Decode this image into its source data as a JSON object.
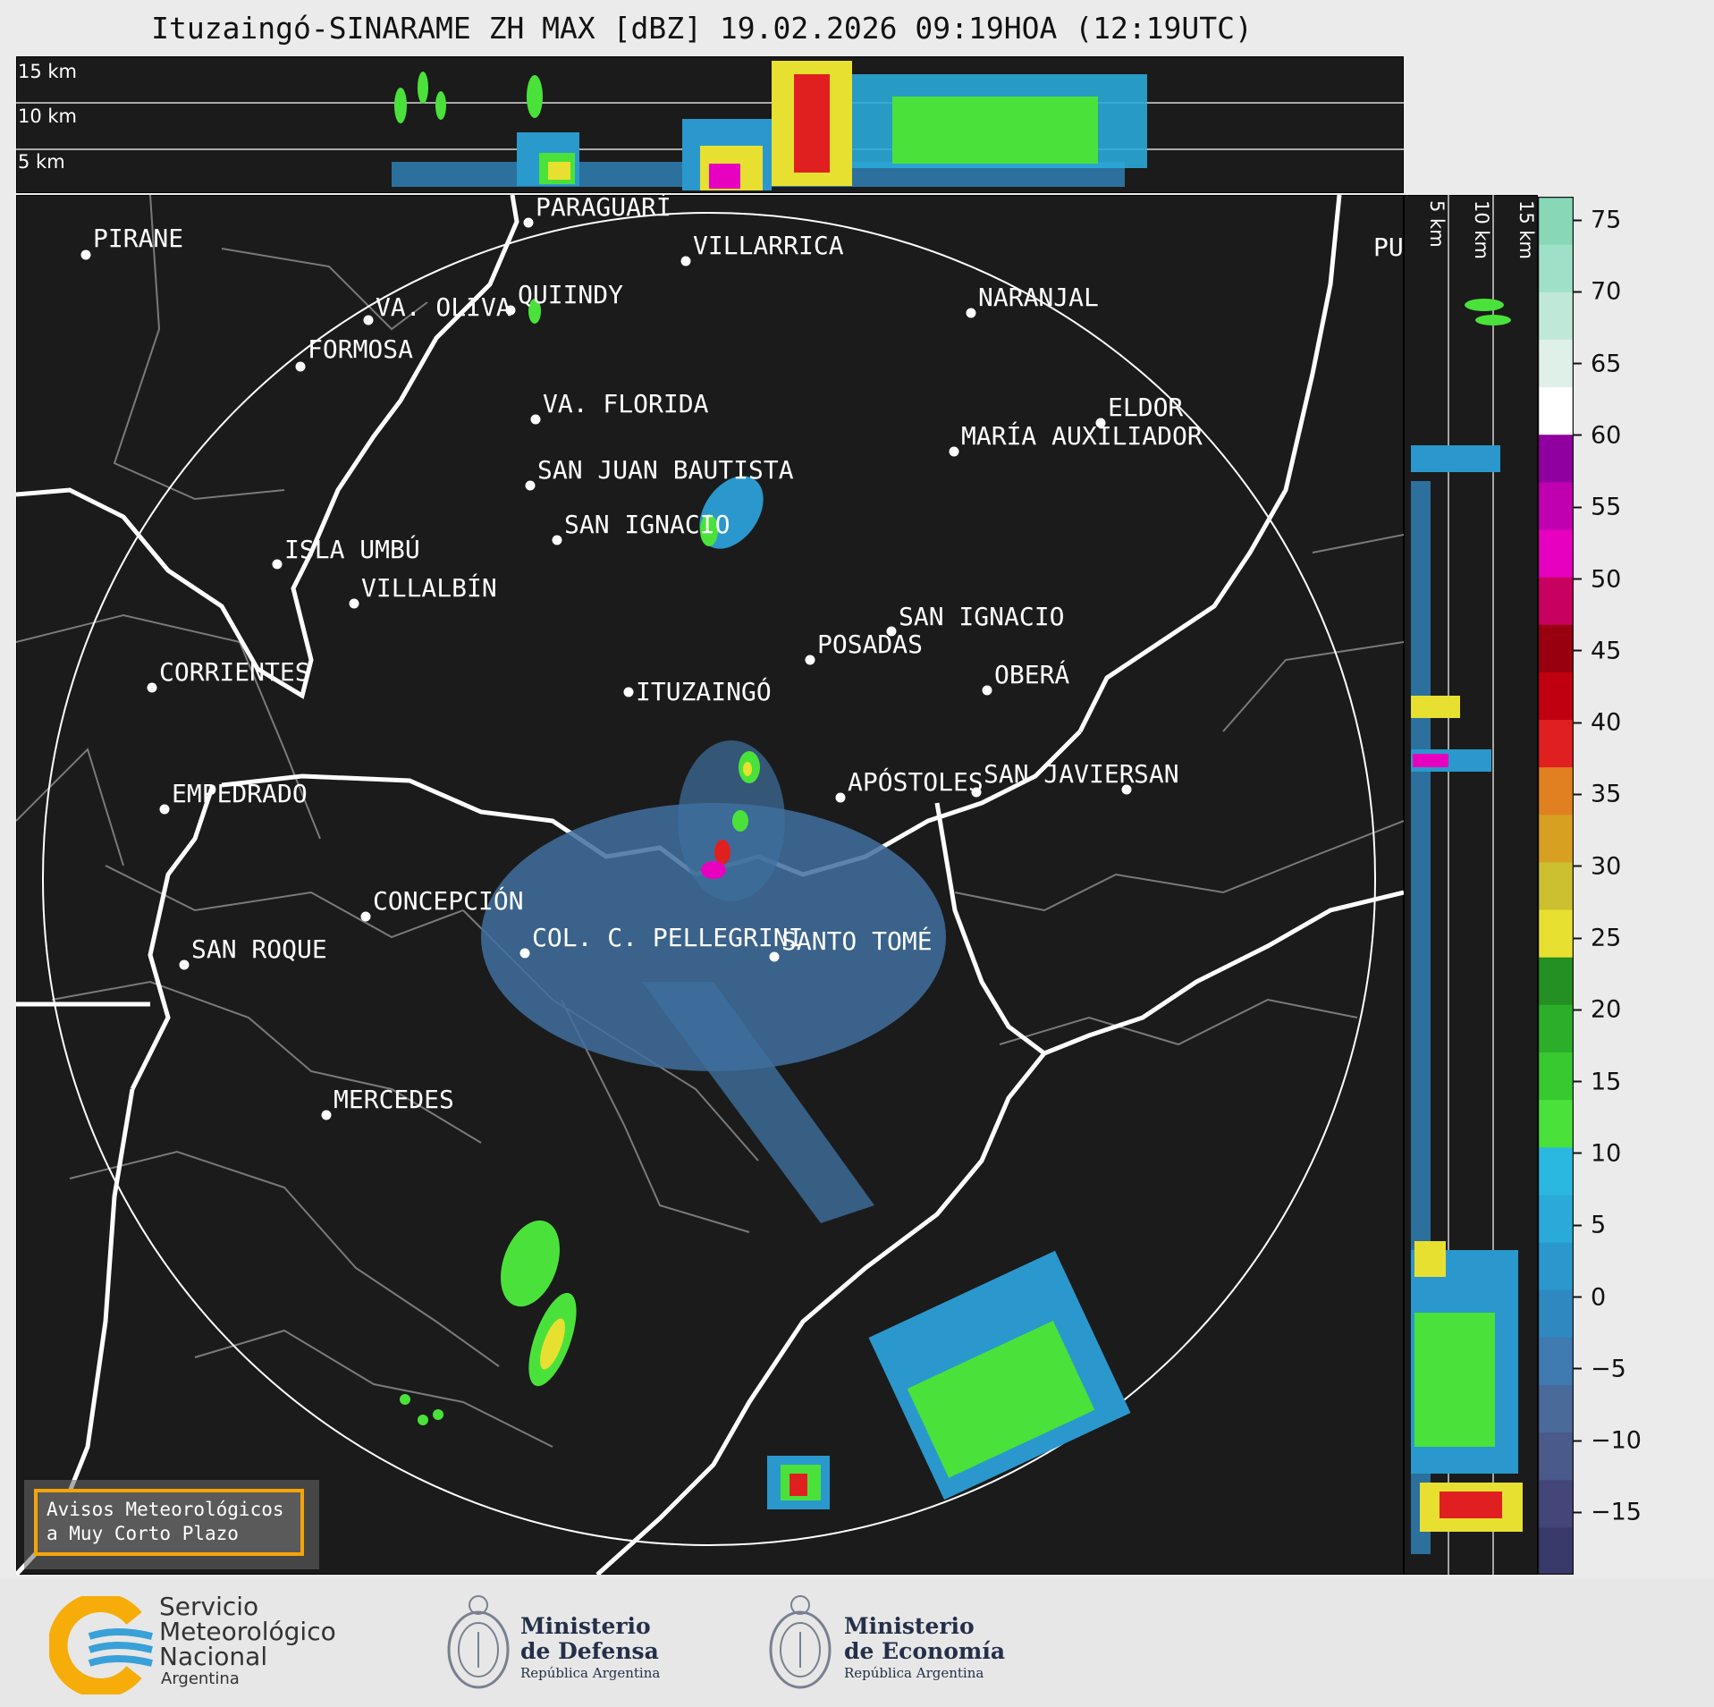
{
  "title": "Ituzaingó-SINARAME ZH MAX [dBZ] 19.02.2026 09:19HOA (12:19UTC)",
  "top_panel": {
    "km_labels": [
      "15 km",
      "10 km",
      "5 km"
    ]
  },
  "side_panel": {
    "km_labels": [
      "5 km",
      "10 km",
      "15 km"
    ]
  },
  "colorbar": {
    "ticks": [
      "75",
      "70",
      "65",
      "60",
      "55",
      "50",
      "45",
      "40",
      "35",
      "30",
      "25",
      "20",
      "15",
      "10",
      "5",
      "0",
      "−5",
      "−10",
      "−15"
    ],
    "colors": [
      "#3a3a6a",
      "#44467a",
      "#4a5a8a",
      "#4a6a9a",
      "#3f7ab0",
      "#2f88c0",
      "#2a98cc",
      "#2aaad8",
      "#2ab8e0",
      "#4ae23a",
      "#38c830",
      "#2cae2a",
      "#248f22",
      "#e8e030",
      "#ccc030",
      "#d8a020",
      "#e08020",
      "#e02020",
      "#c00010",
      "#980010",
      "#c80060",
      "#e800c0",
      "#c000b0",
      "#9000a0",
      "#ffffff",
      "#dff0e8",
      "#bfe8d8",
      "#9fe0c8",
      "#88d8b8"
    ]
  },
  "cities": [
    {
      "name": "PIRANE"
    },
    {
      "name": "PARAGUARÍ"
    },
    {
      "name": "VILLARRICA"
    },
    {
      "name": "QUIINDY"
    },
    {
      "name": "VA. OLIVA"
    },
    {
      "name": "NARANJAL"
    },
    {
      "name": "FORMOSA"
    },
    {
      "name": "VA. FLORIDA"
    },
    {
      "name": "ELDOR"
    },
    {
      "name": "MARÍA AUXILIADOR"
    },
    {
      "name": "SAN JUAN BAUTISTA"
    },
    {
      "name": "SAN IGNACIO"
    },
    {
      "name": "ISLA UMBÚ"
    },
    {
      "name": "VILLALBÍN"
    },
    {
      "name": "SAN IGNACIO"
    },
    {
      "name": "POSADAS"
    },
    {
      "name": "CORRIENTES"
    },
    {
      "name": "ITUZAINGÓ"
    },
    {
      "name": "OBERÁ"
    },
    {
      "name": "APÓSTOLES"
    },
    {
      "name": "SAN JAVIER"
    },
    {
      "name": "SAN"
    },
    {
      "name": "EMPEDRADO"
    },
    {
      "name": "CONCEPCIÓN"
    },
    {
      "name": "COL. C. PELLEGRINI"
    },
    {
      "name": "SANTO TOMÉ"
    },
    {
      "name": "SAN ROQUE"
    },
    {
      "name": "MERCEDES"
    },
    {
      "name": "PUEI"
    }
  ],
  "notice": {
    "line1": "Avisos Meteorológicos",
    "line2": "a Muy Corto Plazo"
  },
  "footer": {
    "smn": {
      "line1": "Servicio",
      "line2": "Meteorológico",
      "line3": "Nacional",
      "line4": "Argentina"
    },
    "defensa": {
      "line1": "Ministerio",
      "line2": "de Defensa",
      "line3": "República Argentina"
    },
    "economia": {
      "line1": "Ministerio",
      "line2": "de Economía",
      "line3": "República Argentina"
    }
  }
}
